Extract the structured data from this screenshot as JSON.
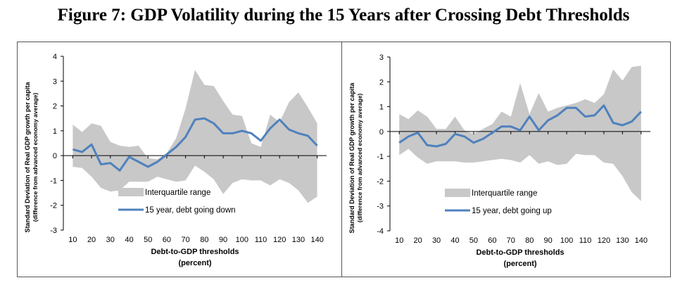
{
  "figure_title": "Figure 7: GDP Volatility during the 15 Years after Crossing Debt Thresholds",
  "colors": {
    "band": "#c8c8c8",
    "line": "#4f81bd",
    "axis": "#000000"
  },
  "chart_data": [
    {
      "type": "line",
      "title": "",
      "xlabel": "Debt-to-GDP thresholds",
      "xlabel_line2": "(percent)",
      "ylabel": "Standard Deviation of Real GDP growth per capita",
      "ylabel_line2": "(difference from advanced economy average)",
      "ylim": [
        -3,
        4
      ],
      "yticks": [
        -3,
        -2,
        -1,
        0,
        1,
        2,
        3,
        4
      ],
      "xticks": [
        10,
        20,
        30,
        40,
        50,
        60,
        70,
        80,
        90,
        100,
        110,
        120,
        130,
        140
      ],
      "x": [
        10,
        15,
        20,
        25,
        30,
        35,
        40,
        45,
        50,
        55,
        60,
        65,
        70,
        75,
        80,
        85,
        90,
        95,
        100,
        105,
        110,
        115,
        120,
        125,
        130,
        135,
        140
      ],
      "legend_placement": "bottom-center",
      "series": [
        {
          "name": "Interquartile range",
          "kind": "band",
          "upper": [
            1.25,
            0.95,
            1.3,
            1.2,
            0.55,
            0.4,
            0.35,
            0.4,
            -0.1,
            -0.15,
            0.1,
            0.7,
            1.9,
            3.45,
            2.85,
            2.8,
            2.2,
            1.65,
            1.6,
            0.5,
            0.35,
            1.65,
            1.35,
            2.15,
            2.55,
            1.95,
            1.3
          ],
          "lower": [
            -0.45,
            -0.5,
            -0.85,
            -1.3,
            -1.45,
            -1.4,
            -1.05,
            -1.05,
            -1.05,
            -0.85,
            -0.95,
            -1.05,
            -1.0,
            -0.4,
            -0.65,
            -0.95,
            -1.55,
            -1.1,
            -0.95,
            -1.0,
            -1.0,
            -1.2,
            -0.95,
            -1.1,
            -1.4,
            -1.9,
            -1.65
          ]
        },
        {
          "name": "15 year, debt going down",
          "kind": "line",
          "values": [
            0.25,
            0.15,
            0.45,
            -0.35,
            -0.3,
            -0.6,
            -0.05,
            -0.25,
            -0.45,
            -0.25,
            0.05,
            0.35,
            0.75,
            1.45,
            1.5,
            1.3,
            0.9,
            0.9,
            1.0,
            0.9,
            0.6,
            1.1,
            1.45,
            1.05,
            0.9,
            0.8,
            0.4
          ]
        }
      ]
    },
    {
      "type": "line",
      "title": "",
      "xlabel": "Debt-to-GDP thresholds",
      "xlabel_line2": "(percent)",
      "ylabel": "Standard Deviation of Real GDP growth per capita",
      "ylabel_line2": "(difference from advanced economy average)",
      "ylim": [
        -4,
        3
      ],
      "yticks": [
        -4,
        -3,
        -2,
        -1,
        0,
        1,
        2,
        3
      ],
      "xticks": [
        10,
        20,
        30,
        40,
        50,
        60,
        70,
        80,
        90,
        100,
        110,
        120,
        130,
        140
      ],
      "x": [
        10,
        15,
        20,
        25,
        30,
        35,
        40,
        45,
        50,
        55,
        60,
        65,
        70,
        75,
        80,
        85,
        90,
        95,
        100,
        105,
        110,
        115,
        120,
        125,
        130,
        135,
        140
      ],
      "legend_placement": "bottom-center",
      "series": [
        {
          "name": "Interquartile range",
          "kind": "band",
          "upper": [
            0.7,
            0.5,
            0.85,
            0.6,
            0.1,
            0.1,
            0.6,
            0.05,
            -0.1,
            0.1,
            0.3,
            0.8,
            0.6,
            1.95,
            0.7,
            1.55,
            0.8,
            0.95,
            1.05,
            1.15,
            1.3,
            1.15,
            1.5,
            2.5,
            2.05,
            2.6,
            2.65
          ],
          "lower": [
            -0.95,
            -0.7,
            -1.05,
            -1.3,
            -1.2,
            -1.2,
            -1.2,
            -1.25,
            -1.25,
            -1.2,
            -1.15,
            -1.1,
            -1.15,
            -1.25,
            -0.95,
            -1.3,
            -1.2,
            -1.35,
            -1.3,
            -0.9,
            -0.95,
            -0.95,
            -1.25,
            -1.3,
            -1.8,
            -2.45,
            -2.8
          ]
        },
        {
          "name": "15 year, debt going up",
          "kind": "line",
          "values": [
            -0.45,
            -0.2,
            -0.05,
            -0.55,
            -0.6,
            -0.5,
            -0.1,
            -0.2,
            -0.45,
            -0.3,
            -0.05,
            0.2,
            0.2,
            0.05,
            0.6,
            0.05,
            0.45,
            0.65,
            0.95,
            0.95,
            0.6,
            0.65,
            1.05,
            0.35,
            0.25,
            0.4,
            0.8
          ]
        }
      ]
    }
  ]
}
